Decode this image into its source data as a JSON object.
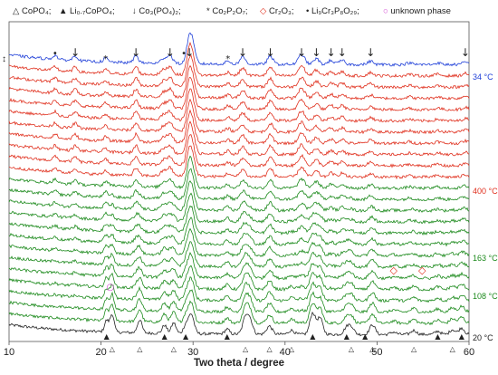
{
  "chart_data": {
    "type": "line",
    "title": "",
    "xlabel": "Two theta / degree",
    "ylabel": "",
    "xlim": [
      10,
      60
    ],
    "x_ticks": [
      "10",
      "20",
      "30",
      "40",
      "50",
      "60"
    ],
    "y_axis_mark": "↕",
    "legend": [
      {
        "symbol": "△",
        "label": "CoPO₄;"
      },
      {
        "symbol": "▲",
        "label": "Li₀.₇CoPO₄;"
      },
      {
        "symbol": "↓",
        "label": "Co₃(PO₄)₂;"
      },
      {
        "symbol": "*",
        "label": "Co₂P₂O₇;"
      },
      {
        "symbol": "◇",
        "label": "Cr₂O₃;"
      },
      {
        "symbol": "•",
        "label": "Li₉Cr₃P₈O₂₉;"
      },
      {
        "symbol": "○",
        "label": "unknown phase"
      }
    ],
    "temperature_labels": [
      {
        "text": "34 °C",
        "color": "#1f3fd8"
      },
      {
        "text": "400 °C",
        "color": "#e0301e"
      },
      {
        "text": "163 °C",
        "color": "#1c8a1c"
      },
      {
        "text": "108 °C",
        "color": "#1c8a1c"
      },
      {
        "text": "20 °C",
        "color": "#222222"
      }
    ],
    "series_groups": [
      {
        "color": "#1f3fd8",
        "count": 1
      },
      {
        "color": "#e0301e",
        "count": 10
      },
      {
        "color": "#1c8a1c",
        "count": 13
      },
      {
        "color": "#222222",
        "count": 1
      }
    ],
    "reflection_markers": {
      "Co3(PO4)2": {
        "symbol": "↓",
        "x": [
          17.2,
          23.8,
          27.5,
          29.6,
          35.4,
          38.4,
          41.8,
          43.4,
          45.0,
          46.2,
          49.3,
          59.6
        ]
      },
      "Co2P2O7": {
        "symbol": "*",
        "x": [
          20.5,
          33.8
        ]
      },
      "Li9Cr3P8O29": {
        "symbol": "•",
        "x": [
          15.0,
          29.0
        ]
      },
      "CoPO4": {
        "symbol": "△",
        "x": [
          21.2,
          24.2,
          27.9,
          35.7,
          38.3,
          40.7,
          47.2,
          49.5,
          54.0,
          58.2
        ]
      },
      "Li0.7CoPO4": {
        "symbol": "▲",
        "x": [
          20.6,
          26.9,
          29.2,
          33.7,
          43.0,
          46.7,
          48.7,
          56.6,
          59.2
        ]
      },
      "Cr2O3": {
        "symbol": "◇",
        "x": [
          51.8,
          54.9
        ]
      },
      "unknown_phase": {
        "symbol": "○",
        "x": [
          21.0
        ]
      }
    }
  }
}
